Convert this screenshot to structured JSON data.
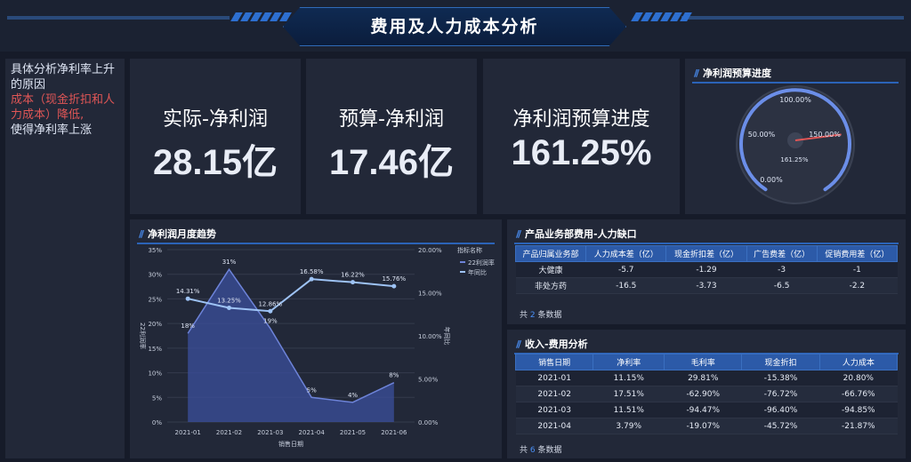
{
  "header": {
    "title": "费用及人力成本分析"
  },
  "note": {
    "line1": "具体分析净利率上升的原因",
    "highlight": "成本（现金折扣和人力成本）降低,",
    "line3": "使得净利率上涨"
  },
  "kpis": [
    {
      "label": "实际-净利润",
      "value": "28.15亿"
    },
    {
      "label": "预算-净利润",
      "value": "17.46亿"
    },
    {
      "label": "净利润预算进度",
      "value": "161.25%"
    }
  ],
  "gauge": {
    "title": "净利润预算进度",
    "ticks": [
      "0.00%",
      "50.00%",
      "100.00%",
      "150.00%"
    ],
    "value_label": "161.25%",
    "value": 161.25,
    "max": 200,
    "colors": {
      "arc": "#5d86e8",
      "needle": "#e05656"
    }
  },
  "chart_title": "净利润月度趋势",
  "chart_data": {
    "type": "line",
    "categories": [
      "2021-01",
      "2021-02",
      "2021-03",
      "2021-04",
      "2021-05",
      "2021-06"
    ],
    "series": [
      {
        "name": "22利润率",
        "type": "area",
        "axis": "left",
        "values": [
          18,
          31,
          19,
          5,
          4,
          8
        ],
        "labels": [
          "18%",
          "31%",
          "19%",
          "5%",
          "4%",
          "8%"
        ]
      },
      {
        "name": "年同比",
        "type": "line",
        "axis": "right",
        "values": [
          14.31,
          13.25,
          12.86,
          16.58,
          16.22,
          15.76
        ],
        "labels": [
          "14.31%",
          "13.25%",
          "12.86%",
          "16.58%",
          "16.22%",
          "15.76%"
        ]
      }
    ],
    "xlabel": "销售日期",
    "ylabel_left": "22利润率",
    "ylabel_right": "年同比",
    "yticks_left": [
      "0%",
      "5%",
      "10%",
      "15%",
      "20%",
      "25%",
      "30%",
      "35%"
    ],
    "yticks_right": [
      "0.00%",
      "5.00%",
      "10.00%",
      "15.00%",
      "20.00%"
    ],
    "ylim_left": [
      0,
      35
    ],
    "ylim_right": [
      0,
      20
    ],
    "legend_title": "指标名称",
    "legend_position": "right",
    "colors": {
      "area": "#3b4f9c",
      "line": "#9ec3f5"
    }
  },
  "table1": {
    "title": "产品业务部费用-人力缺口",
    "headers": [
      "产品归属业务部",
      "人力成本差（亿）",
      "现金折扣差（亿）",
      "广告费差（亿）",
      "促销费用差（亿）"
    ],
    "rows": [
      [
        "大健康",
        "-5.7",
        "-1.29",
        "-3",
        "-1"
      ],
      [
        "非处方药",
        "-16.5",
        "-3.73",
        "-6.5",
        "-2.2"
      ]
    ],
    "count_prefix": "共",
    "count": "2",
    "count_suffix": "条数据"
  },
  "table2": {
    "title": "收入-费用分析",
    "headers": [
      "销售日期",
      "净利率",
      "毛利率",
      "现金折扣",
      "人力成本"
    ],
    "rows": [
      [
        "2021-01",
        "11.15%",
        "29.81%",
        "-15.38%",
        "20.80%"
      ],
      [
        "2021-02",
        "17.51%",
        "-62.90%",
        "-76.72%",
        "-66.76%"
      ],
      [
        "2021-03",
        "11.51%",
        "-94.47%",
        "-96.40%",
        "-94.85%"
      ],
      [
        "2021-04",
        "3.79%",
        "-19.07%",
        "-45.72%",
        "-21.87%"
      ]
    ],
    "count_prefix": "共",
    "count": "6",
    "count_suffix": "条数据"
  }
}
